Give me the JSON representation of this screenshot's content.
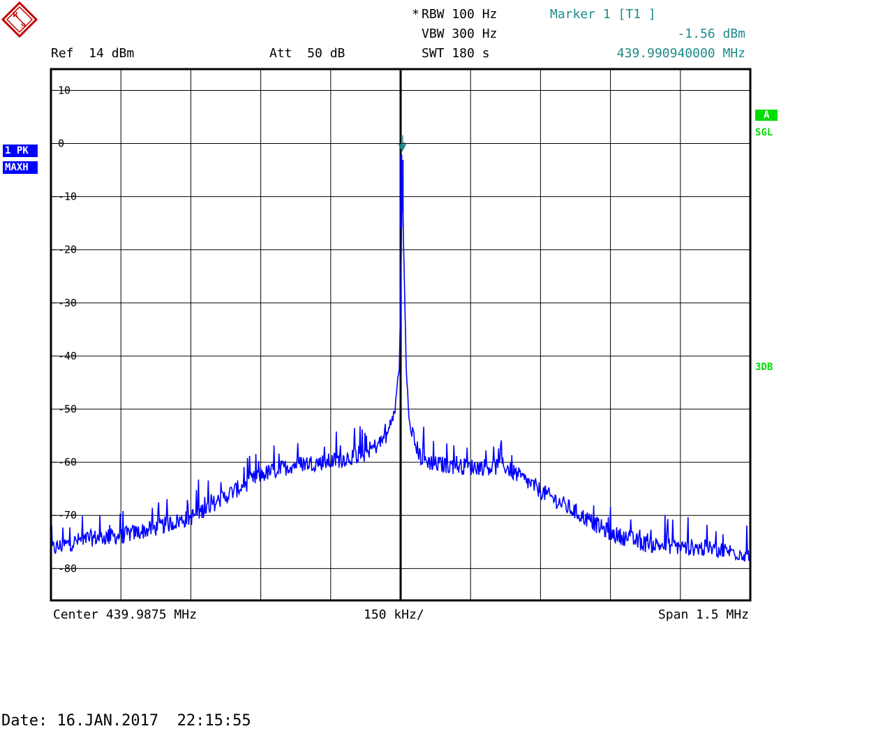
{
  "header": {
    "rbw_star": "*",
    "rbw": "RBW 100 Hz",
    "vbw": "VBW 300 Hz",
    "swt": "SWT 180 s",
    "ref": "Ref  14 dBm",
    "att": "Att  50 dB",
    "marker_title": "Marker 1 [T1 ]",
    "marker_level": "-1.56 dBm",
    "marker_freq": "439.990940000 MHz"
  },
  "left_badges": {
    "trace": "1 PK",
    "mode": "MAXH"
  },
  "right_labels": {
    "a": "A",
    "sgl": "SGL",
    "threedb": "3DB"
  },
  "footer": {
    "center": "Center 439.9875 MHz",
    "div": "150 kHz/",
    "span": "Span 1.5 MHz",
    "date": "Date: 16.JAN.2017  22:15:55"
  },
  "colors": {
    "trace": "#0000ff",
    "marker": "#1f8a8a",
    "status": "#00dd00"
  },
  "chart_data": {
    "type": "line",
    "xlabel": "",
    "ylabel": "",
    "x_unit": "MHz",
    "y_unit": "dBm",
    "xlim": [
      439.2375,
      440.7375
    ],
    "ylim": [
      -86,
      14
    ],
    "grid": true,
    "y_ticks": [
      10,
      0,
      -10,
      -20,
      -30,
      -40,
      -50,
      -60,
      -70,
      -80
    ],
    "y_tick_labels": [
      "10",
      "0",
      "-10",
      "-20",
      "-30",
      "-40",
      "-50",
      "-60",
      "-70",
      "-80"
    ],
    "marker": {
      "label": "1",
      "x": 439.99094,
      "y": -1.56
    },
    "series": [
      {
        "x": [
          439.2375,
          439.3125,
          439.3875,
          439.4625,
          439.5375,
          439.6125,
          439.6875,
          439.7625,
          439.8375,
          439.9125,
          439.9575,
          439.9755,
          439.9845,
          439.9875,
          439.98975,
          439.99094,
          439.9935,
          439.9995,
          440.0055,
          440.0175,
          440.0325,
          440.0625,
          440.1375,
          440.2125,
          440.2875,
          440.3625,
          440.4375,
          440.5125,
          440.5875,
          440.6625,
          440.7375
        ],
        "y": [
          -77,
          -75,
          -74.5,
          -73,
          -71,
          -67,
          -63,
          -61,
          -60.5,
          -59,
          -56,
          -50,
          -42,
          -30,
          -15,
          -1.56,
          -18,
          -42,
          -52,
          -57,
          -60,
          -61,
          -61.5,
          -61.5,
          -66,
          -70,
          -74,
          -76,
          -76.5,
          -77,
          -78
        ]
      }
    ]
  }
}
